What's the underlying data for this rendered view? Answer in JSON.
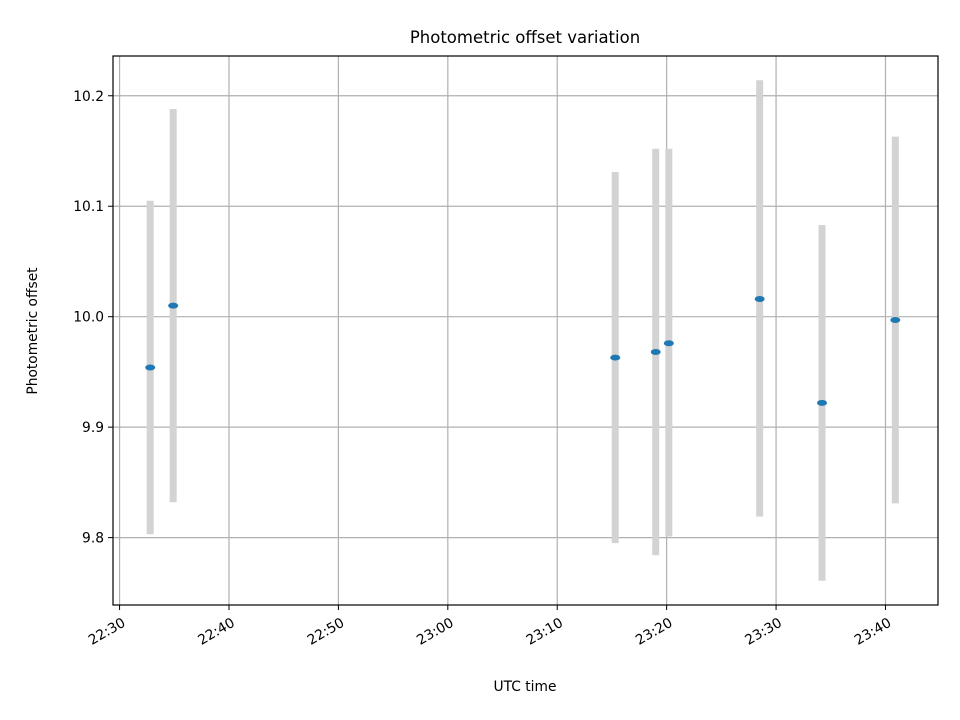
{
  "chart_data": {
    "type": "scatter",
    "title": "Photometric offset variation",
    "xlabel": "UTC time",
    "ylabel": "Photometric offset",
    "x_ticks": [
      "22:30",
      "22:40",
      "22:50",
      "23:00",
      "23:10",
      "23:20",
      "23:30",
      "23:40"
    ],
    "y_ticks": [
      "9.8",
      "9.9",
      "10.0",
      "10.1",
      "10.2"
    ],
    "xlim": [
      "22:29.4",
      "23:44.8"
    ],
    "ylim": [
      9.739,
      10.236
    ],
    "grid": true,
    "legend": "none",
    "point_color": "#1f77b4",
    "errorbar_color": "#d3d3d3",
    "points": [
      {
        "x": "22:32.8",
        "y": 9.954,
        "ylow": 9.803,
        "yhigh": 10.105
      },
      {
        "x": "22:34.9",
        "y": 10.01,
        "ylow": 9.832,
        "yhigh": 10.188
      },
      {
        "x": "23:15.3",
        "y": 9.963,
        "ylow": 9.795,
        "yhigh": 10.131
      },
      {
        "x": "23:19.0",
        "y": 9.968,
        "ylow": 9.784,
        "yhigh": 10.152
      },
      {
        "x": "23:20.2",
        "y": 9.976,
        "ylow": 9.801,
        "yhigh": 10.152
      },
      {
        "x": "23:28.5",
        "y": 10.016,
        "ylow": 9.819,
        "yhigh": 10.214
      },
      {
        "x": "23:34.2",
        "y": 9.922,
        "ylow": 9.761,
        "yhigh": 10.083
      },
      {
        "x": "23:40.9",
        "y": 9.997,
        "ylow": 9.831,
        "yhigh": 10.163
      }
    ]
  }
}
